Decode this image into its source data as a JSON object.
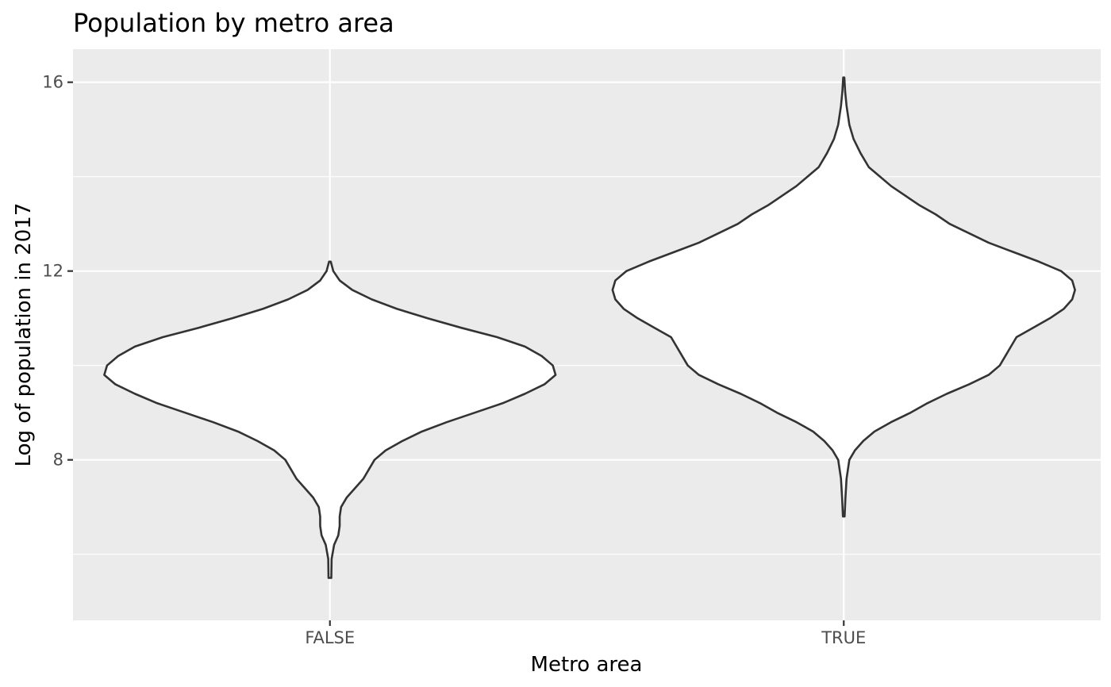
{
  "chart_data": {
    "type": "violin",
    "title": "Population by metro area",
    "xlabel": "Metro area",
    "ylabel": "Log of population in 2017",
    "categories": [
      "FALSE",
      "TRUE"
    ],
    "ylim": [
      4.6,
      16.7
    ],
    "yticks": [
      8,
      12,
      16
    ],
    "yminor": [
      6,
      10,
      14
    ],
    "grid": true,
    "legend": "none",
    "series": [
      {
        "category": "FALSE",
        "min": 5.5,
        "max": 12.2,
        "density": [
          [
            5.5,
            0.005
          ],
          [
            5.9,
            0.006
          ],
          [
            6.2,
            0.015
          ],
          [
            6.4,
            0.03
          ],
          [
            6.6,
            0.035
          ],
          [
            6.8,
            0.035
          ],
          [
            7.0,
            0.04
          ],
          [
            7.2,
            0.06
          ],
          [
            7.4,
            0.09
          ],
          [
            7.6,
            0.12
          ],
          [
            7.8,
            0.14
          ],
          [
            8.0,
            0.16
          ],
          [
            8.2,
            0.2
          ],
          [
            8.4,
            0.26
          ],
          [
            8.6,
            0.33
          ],
          [
            8.8,
            0.42
          ],
          [
            9.0,
            0.52
          ],
          [
            9.2,
            0.62
          ],
          [
            9.4,
            0.7
          ],
          [
            9.6,
            0.77
          ],
          [
            9.8,
            0.81
          ],
          [
            10.0,
            0.8
          ],
          [
            10.2,
            0.76
          ],
          [
            10.4,
            0.7
          ],
          [
            10.6,
            0.6
          ],
          [
            10.8,
            0.47
          ],
          [
            11.0,
            0.35
          ],
          [
            11.2,
            0.24
          ],
          [
            11.4,
            0.15
          ],
          [
            11.6,
            0.08
          ],
          [
            11.8,
            0.035
          ],
          [
            12.0,
            0.012
          ],
          [
            12.2,
            0.003
          ]
        ]
      },
      {
        "category": "TRUE",
        "min": 6.8,
        "max": 16.1,
        "density": [
          [
            6.8,
            0.003
          ],
          [
            7.2,
            0.006
          ],
          [
            7.6,
            0.01
          ],
          [
            8.0,
            0.02
          ],
          [
            8.2,
            0.04
          ],
          [
            8.4,
            0.07
          ],
          [
            8.6,
            0.11
          ],
          [
            8.8,
            0.17
          ],
          [
            9.0,
            0.24
          ],
          [
            9.2,
            0.3
          ],
          [
            9.4,
            0.37
          ],
          [
            9.6,
            0.45
          ],
          [
            9.8,
            0.52
          ],
          [
            10.0,
            0.56
          ],
          [
            10.2,
            0.58
          ],
          [
            10.4,
            0.6
          ],
          [
            10.6,
            0.62
          ],
          [
            10.8,
            0.68
          ],
          [
            11.0,
            0.74
          ],
          [
            11.2,
            0.79
          ],
          [
            11.4,
            0.82
          ],
          [
            11.6,
            0.83
          ],
          [
            11.8,
            0.82
          ],
          [
            12.0,
            0.78
          ],
          [
            12.2,
            0.7
          ],
          [
            12.4,
            0.61
          ],
          [
            12.6,
            0.52
          ],
          [
            12.8,
            0.45
          ],
          [
            13.0,
            0.38
          ],
          [
            13.2,
            0.33
          ],
          [
            13.4,
            0.27
          ],
          [
            13.6,
            0.22
          ],
          [
            13.8,
            0.17
          ],
          [
            14.0,
            0.13
          ],
          [
            14.2,
            0.09
          ],
          [
            14.5,
            0.06
          ],
          [
            14.8,
            0.035
          ],
          [
            15.1,
            0.02
          ],
          [
            15.5,
            0.01
          ],
          [
            15.8,
            0.005
          ],
          [
            16.1,
            0.002
          ]
        ]
      }
    ]
  }
}
